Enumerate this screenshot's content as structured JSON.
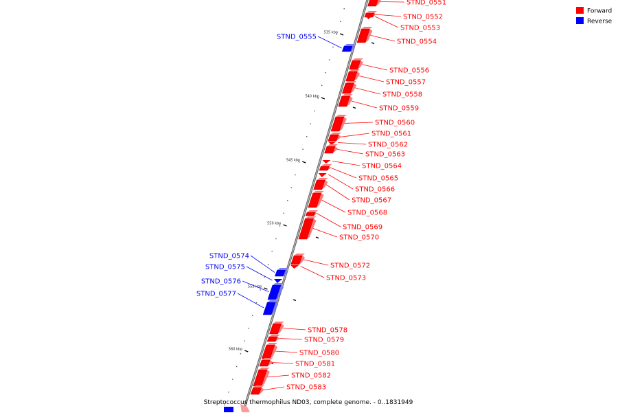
{
  "caption": "Streptococcus thermophilus ND03, complete genome. - 0..1831949",
  "legend": [
    {
      "label": "Forward",
      "color": "#ff0000"
    },
    {
      "label": "Reverse",
      "color": "#0000ff"
    }
  ],
  "colors": {
    "forward": "#ff0000",
    "reverse": "#0000ff",
    "backbone": "#888888"
  },
  "ticks": [
    "535 kbp",
    "540 kbp",
    "545 kbp",
    "550 kbp",
    "555 kbp",
    "560 kbp"
  ],
  "genes": [
    {
      "id": "STND_0551",
      "strand": "forward"
    },
    {
      "id": "STND_0552",
      "strand": "forward"
    },
    {
      "id": "STND_0553",
      "strand": "forward"
    },
    {
      "id": "STND_0554",
      "strand": "forward"
    },
    {
      "id": "STND_0555",
      "strand": "reverse"
    },
    {
      "id": "STND_0556",
      "strand": "forward"
    },
    {
      "id": "STND_0557",
      "strand": "forward"
    },
    {
      "id": "STND_0558",
      "strand": "forward"
    },
    {
      "id": "STND_0559",
      "strand": "forward"
    },
    {
      "id": "STND_0560",
      "strand": "forward"
    },
    {
      "id": "STND_0561",
      "strand": "forward"
    },
    {
      "id": "STND_0562",
      "strand": "forward"
    },
    {
      "id": "STND_0563",
      "strand": "forward"
    },
    {
      "id": "STND_0564",
      "strand": "forward"
    },
    {
      "id": "STND_0565",
      "strand": "forward"
    },
    {
      "id": "STND_0566",
      "strand": "forward"
    },
    {
      "id": "STND_0567",
      "strand": "forward"
    },
    {
      "id": "STND_0568",
      "strand": "forward"
    },
    {
      "id": "STND_0569",
      "strand": "forward"
    },
    {
      "id": "STND_0570",
      "strand": "forward"
    },
    {
      "id": "STND_0572",
      "strand": "forward"
    },
    {
      "id": "STND_0573",
      "strand": "forward"
    },
    {
      "id": "STND_0574",
      "strand": "reverse"
    },
    {
      "id": "STND_0575",
      "strand": "reverse"
    },
    {
      "id": "STND_0576",
      "strand": "reverse"
    },
    {
      "id": "STND_0577",
      "strand": "reverse"
    },
    {
      "id": "STND_0578",
      "strand": "forward"
    },
    {
      "id": "STND_0579",
      "strand": "forward"
    },
    {
      "id": "STND_0580",
      "strand": "forward"
    },
    {
      "id": "STND_0581",
      "strand": "forward"
    },
    {
      "id": "STND_0582",
      "strand": "forward"
    },
    {
      "id": "STND_0583",
      "strand": "forward"
    }
  ]
}
